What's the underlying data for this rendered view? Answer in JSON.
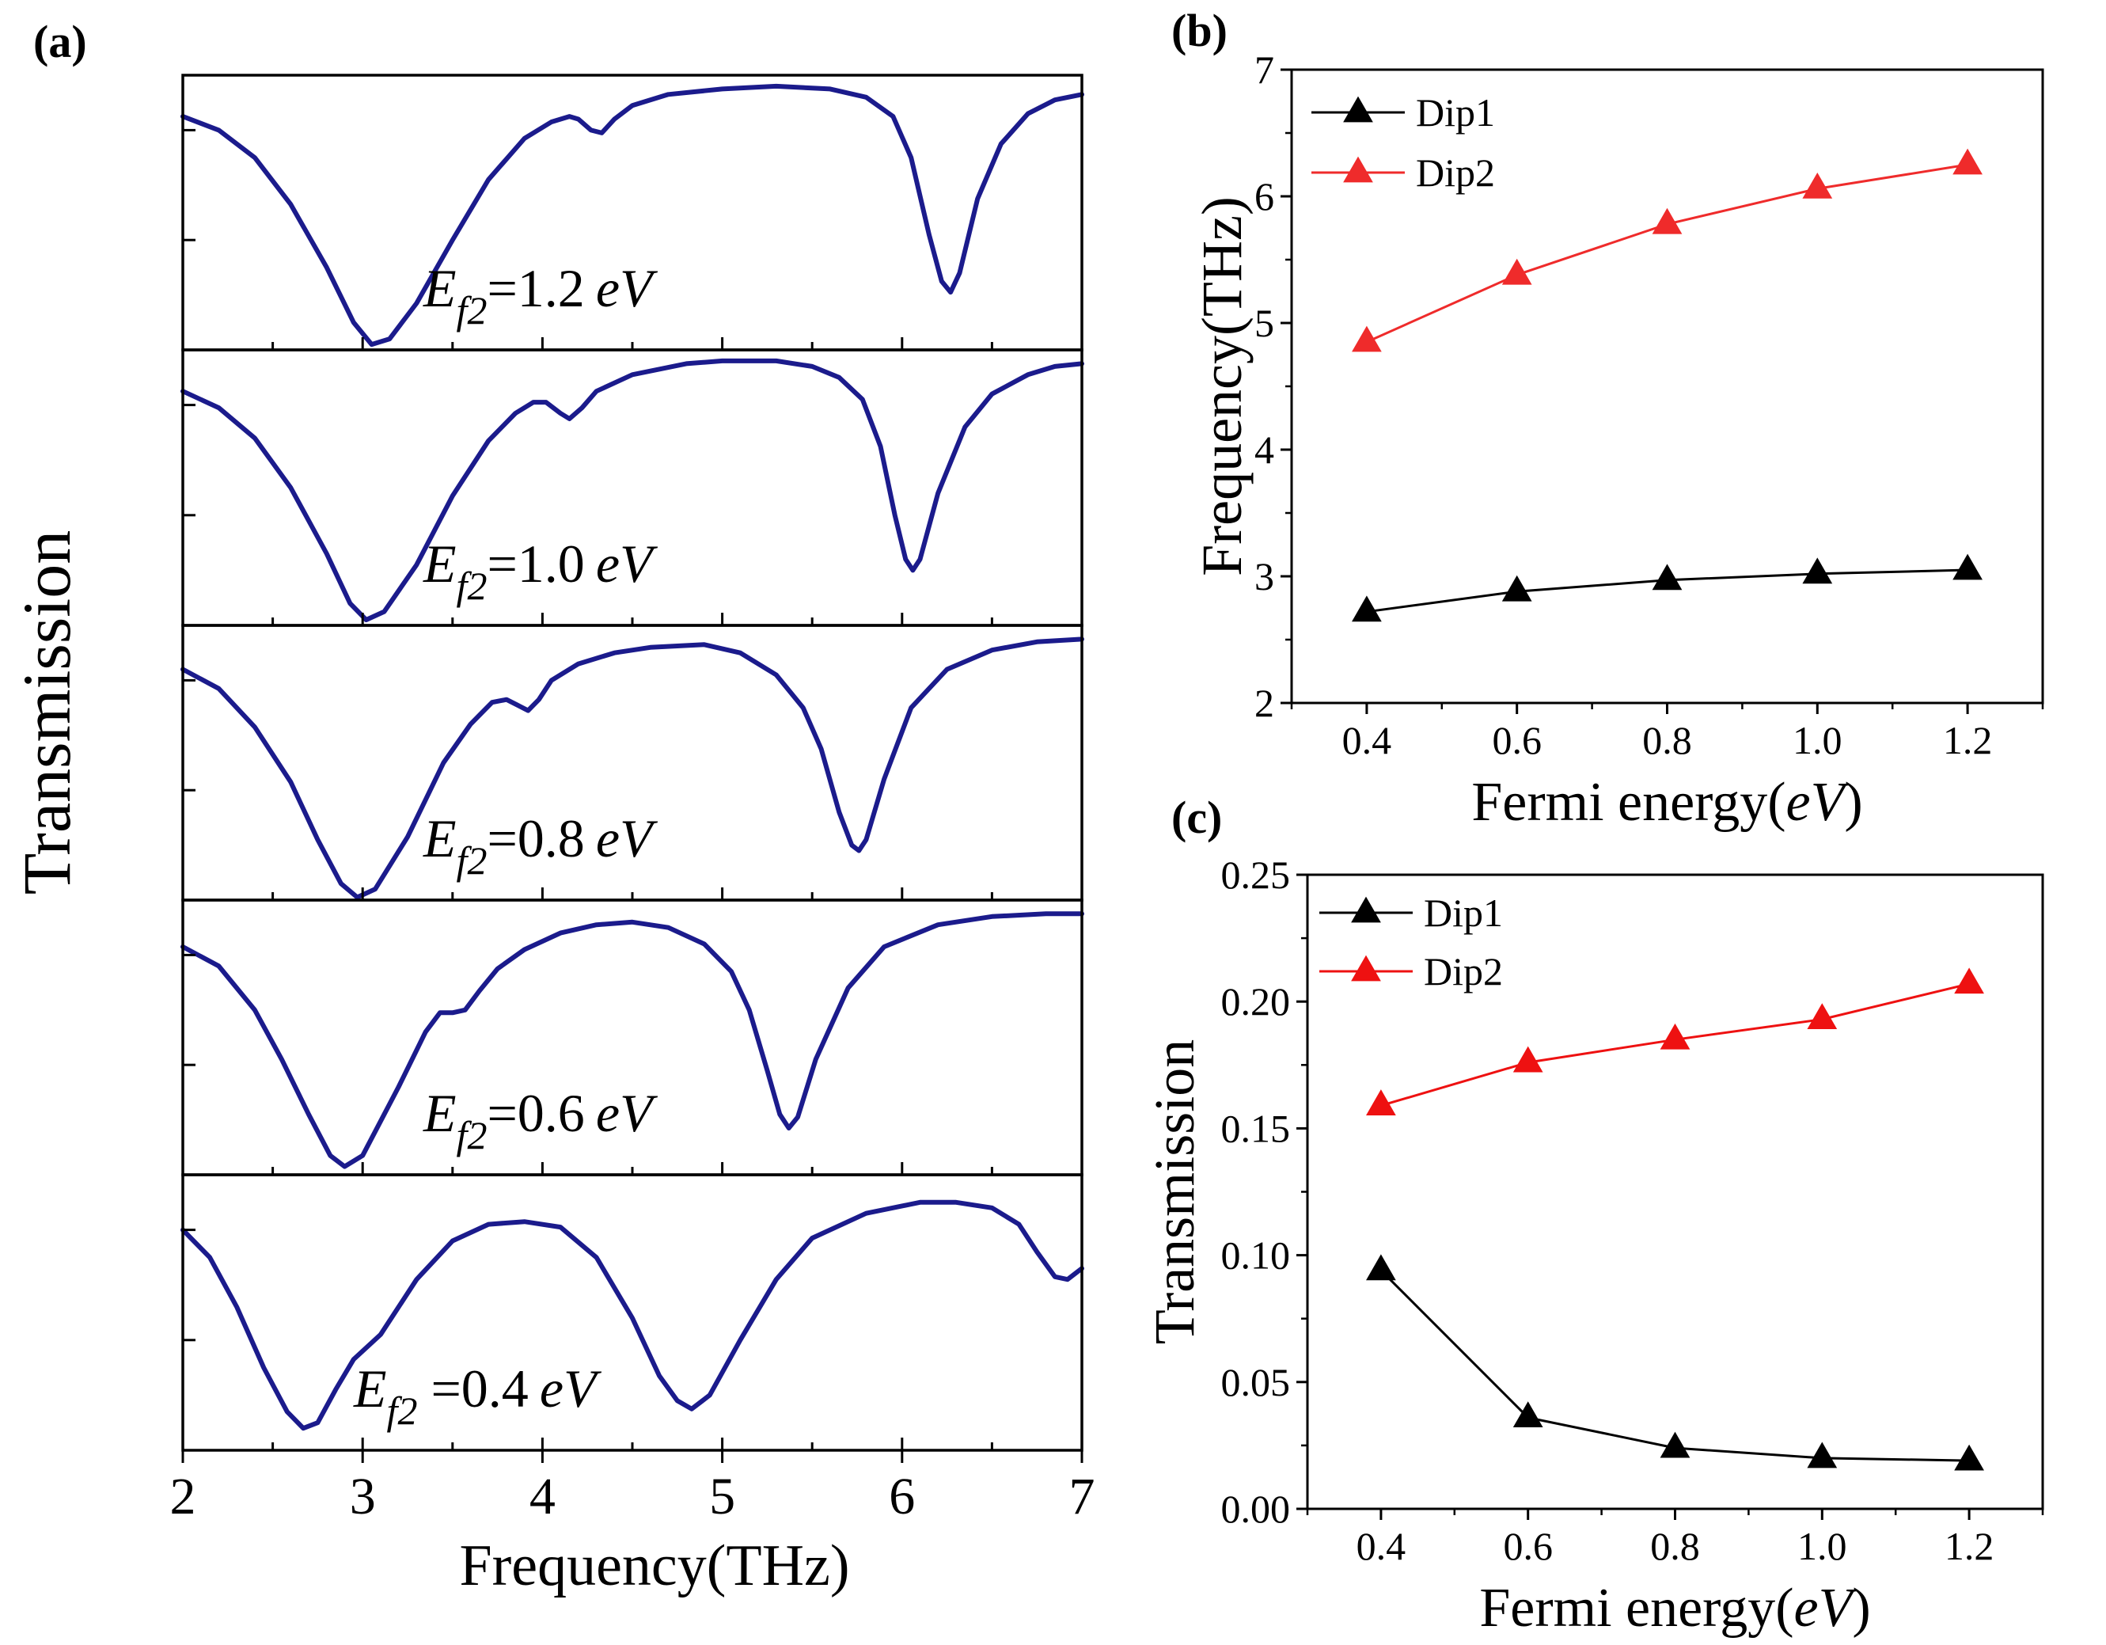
{
  "panels": {
    "a": {
      "label": "(a)"
    },
    "b": {
      "label": "(b)"
    },
    "c": {
      "label": "(c)"
    }
  },
  "chart_data": [
    {
      "id": "a",
      "type": "line",
      "title": "",
      "xlabel": "Frequency(THz)",
      "ylabel": "Transmission",
      "xlim": [
        2,
        7
      ],
      "ylim": [
        0,
        1
      ],
      "xticks": [
        "2",
        "3",
        "4",
        "5",
        "6",
        "7"
      ],
      "yticks": [
        "0.4",
        "0.8"
      ],
      "line_color": "#1b1b8c",
      "subplots": [
        {
          "annotation": {
            "prefix": "E",
            "sub": "f2",
            "value": "=1.2",
            "unit": "eV"
          },
          "points": [
            [
              2.0,
              0.85
            ],
            [
              2.2,
              0.8
            ],
            [
              2.4,
              0.7
            ],
            [
              2.6,
              0.53
            ],
            [
              2.8,
              0.3
            ],
            [
              2.95,
              0.1
            ],
            [
              3.05,
              0.02
            ],
            [
              3.15,
              0.04
            ],
            [
              3.3,
              0.17
            ],
            [
              3.5,
              0.4
            ],
            [
              3.7,
              0.62
            ],
            [
              3.9,
              0.77
            ],
            [
              4.05,
              0.83
            ],
            [
              4.15,
              0.85
            ],
            [
              4.2,
              0.84
            ],
            [
              4.27,
              0.8
            ],
            [
              4.33,
              0.79
            ],
            [
              4.4,
              0.84
            ],
            [
              4.5,
              0.89
            ],
            [
              4.7,
              0.93
            ],
            [
              5.0,
              0.95
            ],
            [
              5.3,
              0.96
            ],
            [
              5.6,
              0.95
            ],
            [
              5.8,
              0.92
            ],
            [
              5.95,
              0.85
            ],
            [
              6.05,
              0.7
            ],
            [
              6.15,
              0.42
            ],
            [
              6.22,
              0.25
            ],
            [
              6.27,
              0.21
            ],
            [
              6.32,
              0.28
            ],
            [
              6.42,
              0.55
            ],
            [
              6.55,
              0.75
            ],
            [
              6.7,
              0.86
            ],
            [
              6.85,
              0.91
            ],
            [
              7.0,
              0.93
            ]
          ]
        },
        {
          "annotation": {
            "prefix": "E",
            "sub": "f2",
            "value": "=1.0",
            "unit": "eV"
          },
          "points": [
            [
              2.0,
              0.85
            ],
            [
              2.2,
              0.79
            ],
            [
              2.4,
              0.68
            ],
            [
              2.6,
              0.5
            ],
            [
              2.8,
              0.26
            ],
            [
              2.93,
              0.08
            ],
            [
              3.02,
              0.02
            ],
            [
              3.12,
              0.05
            ],
            [
              3.3,
              0.22
            ],
            [
              3.5,
              0.47
            ],
            [
              3.7,
              0.67
            ],
            [
              3.85,
              0.77
            ],
            [
              3.95,
              0.81
            ],
            [
              4.02,
              0.81
            ],
            [
              4.1,
              0.77
            ],
            [
              4.15,
              0.75
            ],
            [
              4.22,
              0.79
            ],
            [
              4.3,
              0.85
            ],
            [
              4.5,
              0.91
            ],
            [
              4.8,
              0.95
            ],
            [
              5.0,
              0.96
            ],
            [
              5.3,
              0.96
            ],
            [
              5.5,
              0.94
            ],
            [
              5.65,
              0.9
            ],
            [
              5.78,
              0.82
            ],
            [
              5.88,
              0.65
            ],
            [
              5.96,
              0.4
            ],
            [
              6.02,
              0.24
            ],
            [
              6.06,
              0.2
            ],
            [
              6.1,
              0.24
            ],
            [
              6.2,
              0.48
            ],
            [
              6.35,
              0.72
            ],
            [
              6.5,
              0.84
            ],
            [
              6.7,
              0.91
            ],
            [
              6.85,
              0.94
            ],
            [
              7.0,
              0.95
            ]
          ]
        },
        {
          "annotation": {
            "prefix": "E",
            "sub": "f2",
            "value": "=0.8",
            "unit": "eV"
          },
          "points": [
            [
              2.0,
              0.84
            ],
            [
              2.2,
              0.77
            ],
            [
              2.4,
              0.63
            ],
            [
              2.6,
              0.43
            ],
            [
              2.75,
              0.22
            ],
            [
              2.88,
              0.06
            ],
            [
              2.97,
              0.01
            ],
            [
              3.07,
              0.04
            ],
            [
              3.25,
              0.23
            ],
            [
              3.45,
              0.5
            ],
            [
              3.6,
              0.64
            ],
            [
              3.72,
              0.72
            ],
            [
              3.8,
              0.73
            ],
            [
              3.86,
              0.71
            ],
            [
              3.92,
              0.69
            ],
            [
              3.98,
              0.73
            ],
            [
              4.05,
              0.8
            ],
            [
              4.2,
              0.86
            ],
            [
              4.4,
              0.9
            ],
            [
              4.6,
              0.92
            ],
            [
              4.9,
              0.93
            ],
            [
              5.1,
              0.9
            ],
            [
              5.3,
              0.82
            ],
            [
              5.45,
              0.7
            ],
            [
              5.55,
              0.55
            ],
            [
              5.65,
              0.32
            ],
            [
              5.72,
              0.2
            ],
            [
              5.76,
              0.18
            ],
            [
              5.8,
              0.22
            ],
            [
              5.9,
              0.44
            ],
            [
              6.05,
              0.7
            ],
            [
              6.25,
              0.84
            ],
            [
              6.5,
              0.91
            ],
            [
              6.75,
              0.94
            ],
            [
              7.0,
              0.95
            ]
          ]
        },
        {
          "annotation": {
            "prefix": "E",
            "sub": "f2",
            "value": "=0.6",
            "unit": "eV"
          },
          "points": [
            [
              2.0,
              0.83
            ],
            [
              2.2,
              0.76
            ],
            [
              2.4,
              0.6
            ],
            [
              2.55,
              0.42
            ],
            [
              2.7,
              0.22
            ],
            [
              2.82,
              0.07
            ],
            [
              2.9,
              0.03
            ],
            [
              3.0,
              0.07
            ],
            [
              3.2,
              0.32
            ],
            [
              3.35,
              0.52
            ],
            [
              3.43,
              0.59
            ],
            [
              3.5,
              0.59
            ],
            [
              3.57,
              0.6
            ],
            [
              3.65,
              0.67
            ],
            [
              3.75,
              0.75
            ],
            [
              3.9,
              0.82
            ],
            [
              4.1,
              0.88
            ],
            [
              4.3,
              0.91
            ],
            [
              4.5,
              0.92
            ],
            [
              4.7,
              0.9
            ],
            [
              4.9,
              0.84
            ],
            [
              5.05,
              0.74
            ],
            [
              5.15,
              0.6
            ],
            [
              5.25,
              0.38
            ],
            [
              5.32,
              0.22
            ],
            [
              5.37,
              0.17
            ],
            [
              5.42,
              0.21
            ],
            [
              5.52,
              0.42
            ],
            [
              5.7,
              0.68
            ],
            [
              5.9,
              0.83
            ],
            [
              6.2,
              0.91
            ],
            [
              6.5,
              0.94
            ],
            [
              6.8,
              0.95
            ],
            [
              7.0,
              0.95
            ]
          ]
        },
        {
          "annotation": {
            "prefix": "E",
            "sub": "f2",
            "value": " =0.4",
            "unit": "eV"
          },
          "points": [
            [
              2.0,
              0.8
            ],
            [
              2.15,
              0.7
            ],
            [
              2.3,
              0.52
            ],
            [
              2.45,
              0.3
            ],
            [
              2.58,
              0.14
            ],
            [
              2.67,
              0.08
            ],
            [
              2.75,
              0.1
            ],
            [
              2.85,
              0.22
            ],
            [
              2.95,
              0.33
            ],
            [
              3.1,
              0.42
            ],
            [
              3.3,
              0.62
            ],
            [
              3.5,
              0.76
            ],
            [
              3.7,
              0.82
            ],
            [
              3.9,
              0.83
            ],
            [
              4.1,
              0.81
            ],
            [
              4.3,
              0.7
            ],
            [
              4.5,
              0.48
            ],
            [
              4.65,
              0.27
            ],
            [
              4.75,
              0.18
            ],
            [
              4.83,
              0.15
            ],
            [
              4.93,
              0.2
            ],
            [
              5.1,
              0.4
            ],
            [
              5.3,
              0.62
            ],
            [
              5.5,
              0.77
            ],
            [
              5.8,
              0.86
            ],
            [
              6.1,
              0.9
            ],
            [
              6.3,
              0.9
            ],
            [
              6.5,
              0.88
            ],
            [
              6.65,
              0.82
            ],
            [
              6.75,
              0.72
            ],
            [
              6.85,
              0.63
            ],
            [
              6.92,
              0.62
            ],
            [
              7.0,
              0.66
            ]
          ]
        }
      ]
    },
    {
      "id": "b",
      "type": "line",
      "title": "",
      "xlabel": "Fermi energy(",
      "xlabel_italic": "eV",
      "xlabel_end": ")",
      "ylabel": "Frequency(THz)",
      "xlim": [
        0.3,
        1.3
      ],
      "ylim": [
        2,
        7
      ],
      "xticks": [
        "0.4",
        "0.6",
        "0.8",
        "1.0",
        "1.2"
      ],
      "yticks": [
        "2",
        "3",
        "4",
        "5",
        "6",
        "7"
      ],
      "x": [
        0.4,
        0.6,
        0.8,
        1.0,
        1.2
      ],
      "legend_position": "top-left",
      "series": [
        {
          "name": "Dip1",
          "color": "#000000",
          "values": [
            2.72,
            2.88,
            2.97,
            3.02,
            3.05
          ]
        },
        {
          "name": "Dip2",
          "color": "#ef2b2b",
          "values": [
            4.85,
            5.38,
            5.78,
            6.06,
            6.25
          ]
        }
      ]
    },
    {
      "id": "c",
      "type": "line",
      "title": "",
      "xlabel": "Fermi energy(",
      "xlabel_italic": "eV",
      "xlabel_end": ")",
      "ylabel": "Transmission",
      "xlim": [
        0.3,
        1.3
      ],
      "ylim": [
        0,
        0.25
      ],
      "xticks": [
        "0.4",
        "0.6",
        "0.8",
        "1.0",
        "1.2"
      ],
      "yticks": [
        "0.00",
        "0.05",
        "0.10",
        "0.15",
        "0.20",
        "0.25"
      ],
      "x": [
        0.4,
        0.6,
        0.8,
        1.0,
        1.2
      ],
      "legend_position": "top-left",
      "series": [
        {
          "name": "Dip1",
          "color": "#000000",
          "values": [
            0.094,
            0.036,
            0.024,
            0.02,
            0.019
          ]
        },
        {
          "name": "Dip2",
          "color": "#ee1111",
          "values": [
            0.159,
            0.176,
            0.185,
            0.193,
            0.207
          ]
        }
      ]
    }
  ]
}
